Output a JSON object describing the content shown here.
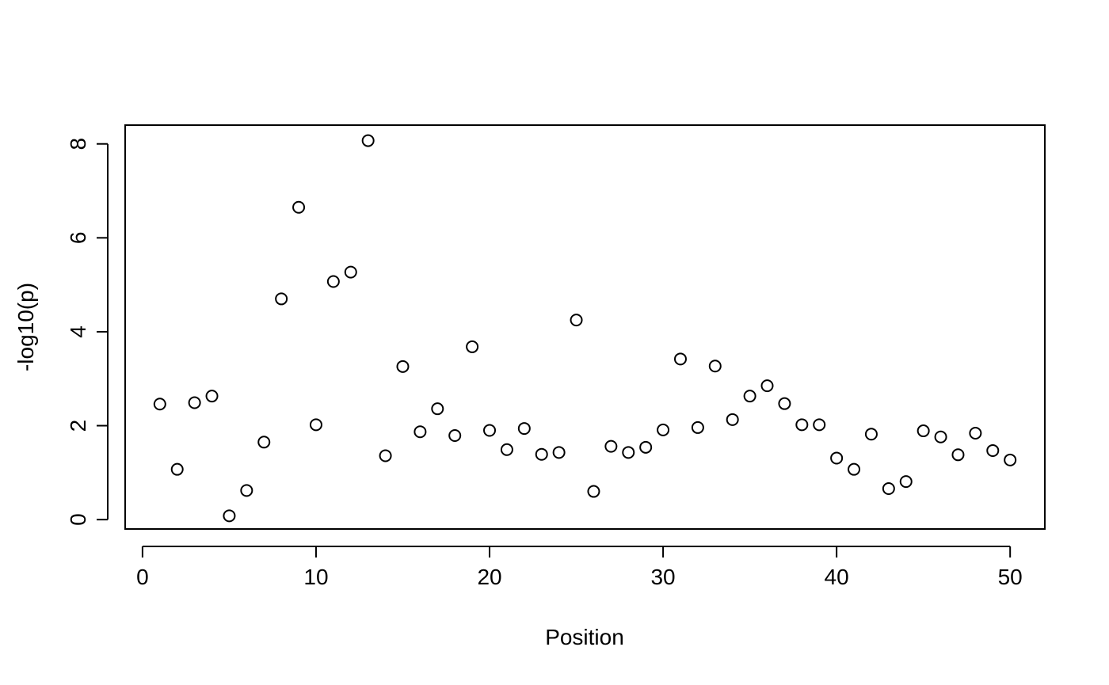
{
  "chart_data": {
    "type": "scatter",
    "title": "",
    "xlabel": "Position",
    "ylabel": "-log10(p)",
    "xlim": [
      -1,
      52
    ],
    "ylim": [
      -0.2,
      8.4
    ],
    "xticks": [
      0,
      10,
      20,
      30,
      40,
      50
    ],
    "yticks": [
      0,
      2,
      4,
      6,
      8
    ],
    "grid": false,
    "series": [
      {
        "x": [
          1,
          2,
          3,
          4,
          5,
          6,
          7,
          8,
          9,
          10,
          11,
          12,
          13,
          14,
          15,
          16,
          17,
          18,
          19,
          20,
          21,
          22,
          23,
          24,
          25,
          26,
          27,
          28,
          29,
          30,
          31,
          32,
          33,
          34,
          35,
          36,
          37,
          38,
          39,
          40,
          41,
          42,
          43,
          44,
          45,
          46,
          47,
          48,
          49,
          50
        ],
        "y": [
          2.46,
          1.07,
          2.49,
          2.63,
          0.08,
          0.62,
          1.65,
          4.7,
          6.65,
          2.02,
          5.07,
          5.27,
          8.07,
          1.36,
          3.26,
          1.87,
          2.36,
          1.79,
          3.68,
          1.9,
          1.49,
          1.94,
          1.39,
          1.43,
          4.25,
          0.6,
          1.56,
          1.43,
          1.54,
          1.91,
          3.42,
          1.96,
          3.27,
          2.13,
          2.63,
          2.85,
          2.47,
          2.02,
          2.02,
          1.31,
          1.07,
          1.82,
          0.66,
          0.81,
          1.89,
          1.76,
          1.38,
          1.84,
          1.47,
          1.27
        ]
      }
    ]
  }
}
